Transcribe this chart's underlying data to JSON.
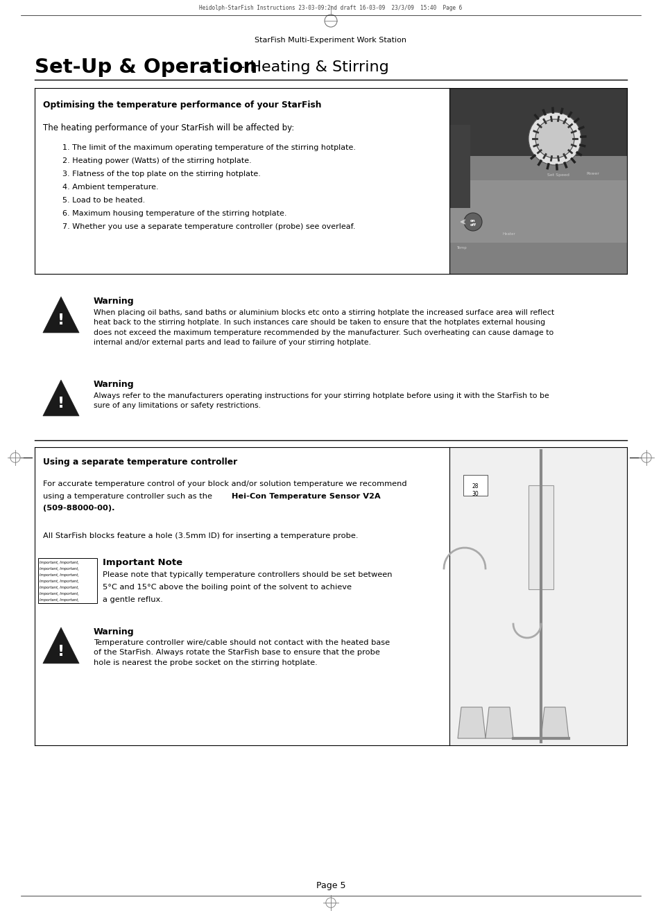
{
  "page_header": "Heidolph-StarFish Instructions 23-03-09:2nd draft 16-03-09  23/3/09  15:40  Page 6",
  "page_footer": "StarFish Multi-Experiment Work Station",
  "page_number": "Page 5",
  "main_title_bold": "Set-Up & Operation",
  "main_title_regular": " - Heating & Stirring",
  "section1_header": "Optimising the temperature performance of your StarFish",
  "section1_intro": "The heating performance of your StarFish will be affected by:",
  "section1_list": [
    "1. The limit of the maximum operating temperature of the stirring hotplate.",
    "2. Heating power (Watts) of the stirring hotplate.",
    "3. Flatness of the top plate on the stirring hotplate.",
    "4. Ambient temperature.",
    "5. Load to be heated.",
    "6. Maximum housing temperature of the stirring hotplate.",
    "7. Whether you use a separate temperature controller (probe) see overleaf."
  ],
  "warning1_title": "Warning",
  "warning1_text": "When placing oil baths, sand baths or aluminium blocks etc onto a stirring hotplate the increased surface area will reflect\nheat back to the stirring hotplate. In such instances care should be taken to ensure that the hotplates external housing\ndoes not exceed the maximum temperature recommended by the manufacturer. Such overheating can cause damage to\ninternal and/or external parts and lead to failure of your stirring hotplate.",
  "warning2_title": "Warning",
  "warning2_text": "Always refer to the manufacturers operating instructions for your stirring hotplate before using it with the StarFish to be\nsure of any limitations or safety restrictions.",
  "section2_header": "Using a separate temperature controller",
  "section2_para1": "For accurate temperature control of your block and/or solution temperature we recommend\nusing a temperature controller such as the ",
  "section2_bold1": "Hei-Con Temperature Sensor V2A",
  "section2_bold2": "(509-88000-00).",
  "section2_para2": "All StarFish blocks feature a hole (3.5mm ID) for inserting a temperature probe.",
  "important_title": "Important Note",
  "important_text_line1": "Please note that typically temperature controllers should be set between",
  "important_text_line2": "5°C and 15°C above the boiling point of the solvent to achieve",
  "important_text_line3": "a gentle reflux.",
  "important_repeated": "Important, Important,",
  "warning3_title": "Warning",
  "warning3_text": "Temperature controller wire/cable should not contact with the heated base\nof the StarFish. Always rotate the StarFish base to ensure that the probe\nhole is nearest the probe socket on the stirring hotplate.",
  "bg_color": "#ffffff",
  "text_color": "#000000"
}
